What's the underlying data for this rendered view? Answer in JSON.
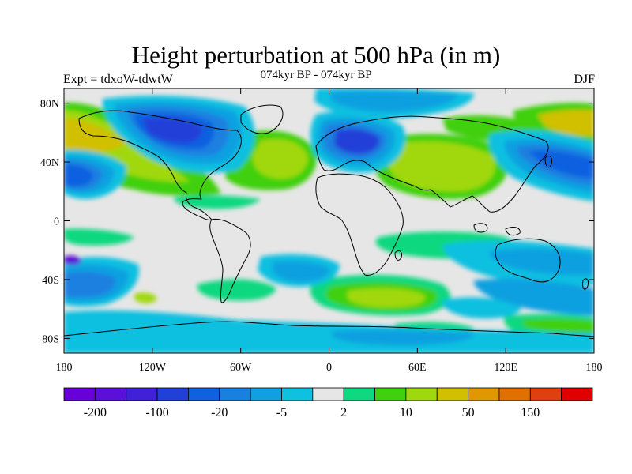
{
  "header": {
    "title": "Height perturbation at 500 hPa (in m)",
    "subtitle": "074kyr BP - 074kyr BP",
    "left_label": "Expt = tdxoW-tdwtW",
    "right_label": "DJF"
  },
  "map": {
    "projection": "cylindrical-equidistant",
    "lon_range": [
      -180,
      180
    ],
    "lat_range": [
      -90,
      90
    ],
    "background_color": "#e6e6e6",
    "lat_ticks": [
      {
        "lat": 80,
        "label": "80N"
      },
      {
        "lat": 40,
        "label": "40N"
      },
      {
        "lat": 0,
        "label": "0"
      },
      {
        "lat": -40,
        "label": "40S"
      },
      {
        "lat": -80,
        "label": "80S"
      }
    ],
    "lon_ticks": [
      {
        "lon": -180,
        "label": "180"
      },
      {
        "lon": -120,
        "label": "120W"
      },
      {
        "lon": -60,
        "label": "60W"
      },
      {
        "lon": 0,
        "label": "0"
      },
      {
        "lon": 60,
        "label": "60E"
      },
      {
        "lon": 120,
        "label": "120E"
      },
      {
        "lon": 180,
        "label": "180"
      }
    ]
  },
  "colorbar": {
    "colors": [
      "#6a00d8",
      "#5a10d8",
      "#4020d8",
      "#2040d8",
      "#1060e0",
      "#1a80e0",
      "#10a0e0",
      "#10c0e0",
      "#e6e6e6",
      "#10d880",
      "#40d010",
      "#a0d810",
      "#d0c000",
      "#e09800",
      "#e07000",
      "#e04010",
      "#e00000"
    ],
    "labels": [
      {
        "after_box": 1,
        "text": "-200"
      },
      {
        "after_box": 3,
        "text": "-100"
      },
      {
        "after_box": 5,
        "text": "-20"
      },
      {
        "after_box": 7,
        "text": "-5"
      },
      {
        "after_box": 9,
        "text": "2"
      },
      {
        "after_box": 11,
        "text": "10"
      },
      {
        "after_box": 13,
        "text": "50"
      },
      {
        "after_box": 15,
        "text": "150"
      }
    ]
  }
}
